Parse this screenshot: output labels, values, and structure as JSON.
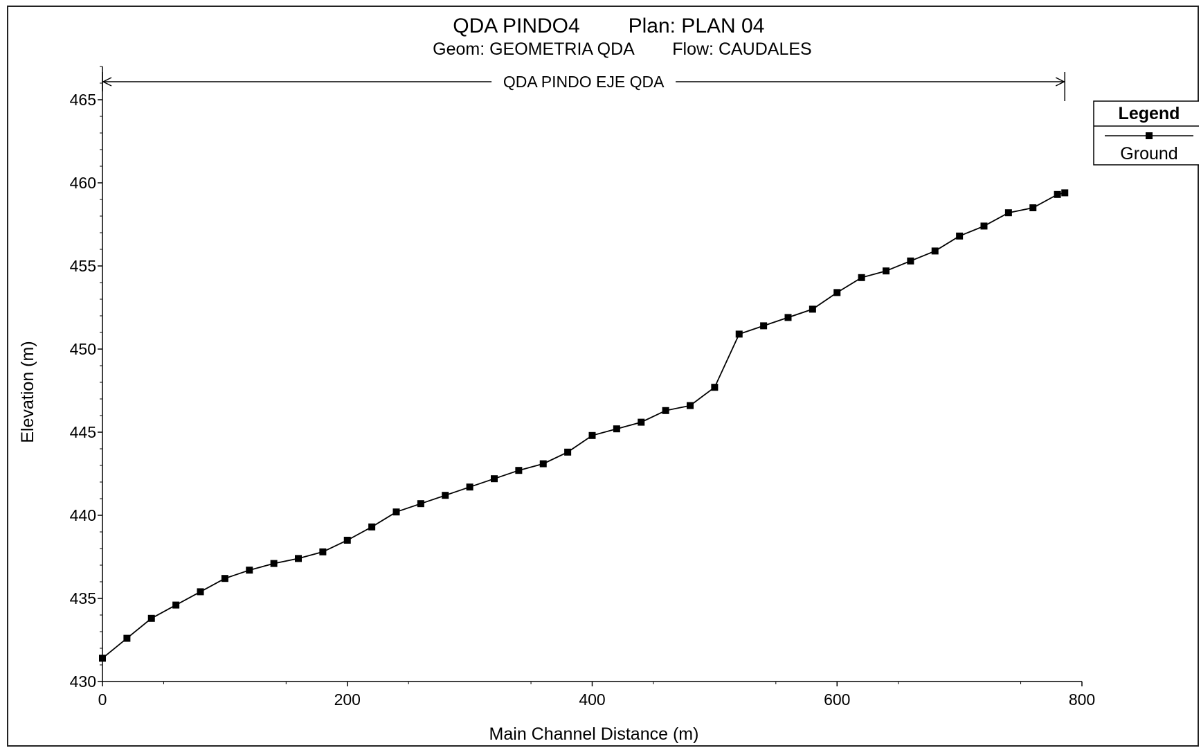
{
  "chart_data": {
    "type": "line",
    "title": {
      "part1": "QDA PINDO4",
      "part2": "Plan: PLAN 04"
    },
    "subtitle": {
      "part1": "Geom: GEOMETRIA QDA",
      "part2": "Flow: CAUDALES"
    },
    "reach_label": "QDA PINDO EJE QDA",
    "reach_range": [
      0,
      786
    ],
    "xlabel": "Main Channel Distance (m)",
    "ylabel": "Elevation (m)",
    "xlim": [
      0,
      800
    ],
    "ylim": [
      430,
      467
    ],
    "x_ticks": [
      "0",
      "200",
      "400",
      "600",
      "800"
    ],
    "y_ticks": [
      "430",
      "435",
      "440",
      "445",
      "450",
      "455",
      "460",
      "465"
    ],
    "x_tick_values": [
      0,
      200,
      400,
      600,
      800
    ],
    "y_tick_values": [
      430,
      435,
      440,
      445,
      450,
      455,
      460,
      465
    ],
    "grid": false,
    "legend": {
      "title": "Legend",
      "position": "top-right-outside",
      "entries": [
        "Ground"
      ]
    },
    "series": [
      {
        "name": "Ground",
        "color": "#000000",
        "marker": "square",
        "x": [
          0,
          20,
          40,
          60,
          80,
          100,
          120,
          140,
          160,
          180,
          200,
          220,
          240,
          260,
          280,
          300,
          320,
          340,
          360,
          380,
          400,
          420,
          440,
          460,
          480,
          500,
          520,
          540,
          560,
          580,
          600,
          620,
          640,
          660,
          680,
          700,
          720,
          740,
          760,
          780,
          786
        ],
        "y": [
          431.4,
          432.6,
          433.8,
          434.6,
          435.4,
          436.2,
          436.7,
          437.1,
          437.4,
          437.8,
          438.5,
          439.3,
          440.2,
          440.7,
          441.2,
          441.7,
          442.2,
          442.7,
          443.1,
          443.8,
          444.8,
          445.2,
          445.6,
          446.3,
          446.6,
          447.7,
          450.9,
          451.4,
          451.9,
          452.4,
          453.4,
          454.3,
          454.7,
          455.3,
          455.9,
          456.8,
          457.4,
          458.2,
          458.5,
          459.3,
          459.4
        ]
      }
    ]
  }
}
